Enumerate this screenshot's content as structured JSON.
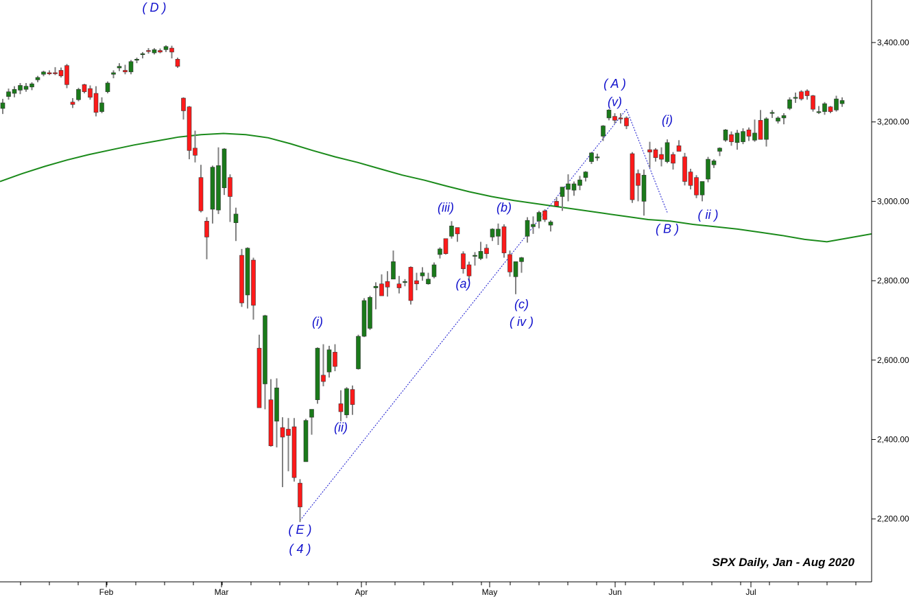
{
  "chart_data": {
    "type": "candlestick",
    "title": "SPX Daily, Jan - Aug 2020",
    "ylim": [
      2080,
      3510
    ],
    "y_ticks": [
      "2,200.00",
      "2,400.00",
      "2,600.00",
      "2,800.00",
      "3,000.00",
      "3,200.00",
      "3,400.00"
    ],
    "x_ticks": [
      "Feb",
      "Mar",
      "Apr",
      "May",
      "Jun",
      "Jul"
    ],
    "grid": false,
    "colors": {
      "up": "#1a7a1a",
      "down": "#ff1a1a",
      "wick": "#808080",
      "moving_average": "#1a8a1a",
      "wave_text": "#1010cc",
      "trendline": "#1010cc"
    },
    "candles": [
      {
        "o": 3234,
        "h": 3258,
        "l": 3220,
        "c": 3248
      },
      {
        "o": 3264,
        "h": 3284,
        "l": 3256,
        "c": 3276
      },
      {
        "o": 3272,
        "h": 3290,
        "l": 3262,
        "c": 3282
      },
      {
        "o": 3280,
        "h": 3298,
        "l": 3270,
        "c": 3292
      },
      {
        "o": 3282,
        "h": 3298,
        "l": 3276,
        "c": 3290
      },
      {
        "o": 3288,
        "h": 3300,
        "l": 3280,
        "c": 3296
      },
      {
        "o": 3306,
        "h": 3316,
        "l": 3300,
        "c": 3312
      },
      {
        "o": 3320,
        "h": 3329,
        "l": 3315,
        "c": 3326
      },
      {
        "o": 3324,
        "h": 3330,
        "l": 3318,
        "c": 3321
      },
      {
        "o": 3324,
        "h": 3338,
        "l": 3318,
        "c": 3322
      },
      {
        "o": 3330,
        "h": 3337,
        "l": 3312,
        "c": 3316
      },
      {
        "o": 3342,
        "h": 3346,
        "l": 3285,
        "c": 3294
      },
      {
        "o": 3250,
        "h": 3260,
        "l": 3235,
        "c": 3244
      },
      {
        "o": 3256,
        "h": 3286,
        "l": 3252,
        "c": 3282
      },
      {
        "o": 3294,
        "h": 3296,
        "l": 3272,
        "c": 3276
      },
      {
        "o": 3284,
        "h": 3292,
        "l": 3256,
        "c": 3262
      },
      {
        "o": 3272,
        "h": 3290,
        "l": 3214,
        "c": 3224
      },
      {
        "o": 3226,
        "h": 3262,
        "l": 3222,
        "c": 3248
      },
      {
        "o": 3276,
        "h": 3302,
        "l": 3272,
        "c": 3298
      },
      {
        "o": 3320,
        "h": 3330,
        "l": 3310,
        "c": 3324
      },
      {
        "o": 3336,
        "h": 3348,
        "l": 3328,
        "c": 3340
      },
      {
        "o": 3330,
        "h": 3344,
        "l": 3320,
        "c": 3326
      },
      {
        "o": 3326,
        "h": 3356,
        "l": 3320,
        "c": 3352
      },
      {
        "o": 3356,
        "h": 3362,
        "l": 3348,
        "c": 3358
      },
      {
        "o": 3370,
        "h": 3376,
        "l": 3360,
        "c": 3372
      },
      {
        "o": 3380,
        "h": 3386,
        "l": 3372,
        "c": 3378
      },
      {
        "o": 3374,
        "h": 3386,
        "l": 3370,
        "c": 3382
      },
      {
        "o": 3380,
        "h": 3385,
        "l": 3373,
        "c": 3376
      },
      {
        "o": 3382,
        "h": 3393,
        "l": 3376,
        "c": 3390
      },
      {
        "o": 3386,
        "h": 3392,
        "l": 3360,
        "c": 3376
      },
      {
        "o": 3358,
        "h": 3362,
        "l": 3336,
        "c": 3340
      },
      {
        "o": 3260,
        "h": 3262,
        "l": 3206,
        "c": 3228
      },
      {
        "o": 3238,
        "h": 3240,
        "l": 3106,
        "c": 3128
      },
      {
        "o": 3134,
        "h": 3178,
        "l": 3098,
        "c": 3116
      },
      {
        "o": 3060,
        "h": 3092,
        "l": 2972,
        "c": 2976
      },
      {
        "o": 2950,
        "h": 2960,
        "l": 2854,
        "c": 2910
      },
      {
        "o": 2980,
        "h": 3090,
        "l": 2944,
        "c": 3086
      },
      {
        "o": 2978,
        "h": 3136,
        "l": 2968,
        "c": 3090
      },
      {
        "o": 3034,
        "h": 3134,
        "l": 3016,
        "c": 3132
      },
      {
        "o": 3060,
        "h": 3068,
        "l": 2948,
        "c": 3012
      },
      {
        "o": 2946,
        "h": 2984,
        "l": 2900,
        "c": 2968
      },
      {
        "o": 2864,
        "h": 2880,
        "l": 2734,
        "c": 2744
      },
      {
        "o": 2764,
        "h": 2884,
        "l": 2730,
        "c": 2882
      },
      {
        "o": 2852,
        "h": 2858,
        "l": 2702,
        "c": 2738
      },
      {
        "o": 2630,
        "h": 2664,
        "l": 2480,
        "c": 2480
      },
      {
        "o": 2540,
        "h": 2714,
        "l": 2476,
        "c": 2712
      },
      {
        "o": 2500,
        "h": 2552,
        "l": 2382,
        "c": 2384
      },
      {
        "o": 2446,
        "h": 2554,
        "l": 2380,
        "c": 2530
      },
      {
        "o": 2430,
        "h": 2456,
        "l": 2280,
        "c": 2406
      },
      {
        "o": 2426,
        "h": 2454,
        "l": 2320,
        "c": 2410
      },
      {
        "o": 2432,
        "h": 2454,
        "l": 2294,
        "c": 2304
      },
      {
        "o": 2290,
        "h": 2300,
        "l": 2192,
        "c": 2230
      },
      {
        "o": 2344,
        "h": 2452,
        "l": 2344,
        "c": 2448
      },
      {
        "o": 2456,
        "h": 2476,
        "l": 2412,
        "c": 2476
      },
      {
        "o": 2500,
        "h": 2632,
        "l": 2490,
        "c": 2630
      },
      {
        "o": 2562,
        "h": 2640,
        "l": 2534,
        "c": 2546
      },
      {
        "o": 2570,
        "h": 2636,
        "l": 2556,
        "c": 2626
      },
      {
        "o": 2620,
        "h": 2640,
        "l": 2572,
        "c": 2584
      },
      {
        "o": 2490,
        "h": 2524,
        "l": 2446,
        "c": 2470
      },
      {
        "o": 2462,
        "h": 2532,
        "l": 2454,
        "c": 2528
      },
      {
        "o": 2526,
        "h": 2536,
        "l": 2462,
        "c": 2488
      },
      {
        "o": 2578,
        "h": 2664,
        "l": 2576,
        "c": 2660
      },
      {
        "o": 2660,
        "h": 2756,
        "l": 2658,
        "c": 2750
      },
      {
        "o": 2680,
        "h": 2762,
        "l": 2676,
        "c": 2758
      },
      {
        "o": 2782,
        "h": 2796,
        "l": 2728,
        "c": 2786
      },
      {
        "o": 2792,
        "h": 2816,
        "l": 2764,
        "c": 2762
      },
      {
        "o": 2798,
        "h": 2824,
        "l": 2760,
        "c": 2784
      },
      {
        "o": 2804,
        "h": 2876,
        "l": 2806,
        "c": 2848
      },
      {
        "o": 2792,
        "h": 2812,
        "l": 2768,
        "c": 2782
      },
      {
        "o": 2796,
        "h": 2804,
        "l": 2786,
        "c": 2798
      },
      {
        "o": 2834,
        "h": 2836,
        "l": 2740,
        "c": 2750
      },
      {
        "o": 2800,
        "h": 2820,
        "l": 2776,
        "c": 2792
      },
      {
        "o": 2812,
        "h": 2834,
        "l": 2800,
        "c": 2820
      },
      {
        "o": 2792,
        "h": 2820,
        "l": 2790,
        "c": 2804
      },
      {
        "o": 2810,
        "h": 2846,
        "l": 2806,
        "c": 2840
      },
      {
        "o": 2866,
        "h": 2884,
        "l": 2856,
        "c": 2880
      },
      {
        "o": 2906,
        "h": 2904,
        "l": 2866,
        "c": 2868
      },
      {
        "o": 2912,
        "h": 2950,
        "l": 2906,
        "c": 2938
      },
      {
        "o": 2934,
        "h": 2930,
        "l": 2898,
        "c": 2918
      },
      {
        "o": 2868,
        "h": 2874,
        "l": 2818,
        "c": 2830
      },
      {
        "o": 2840,
        "h": 2848,
        "l": 2798,
        "c": 2812
      },
      {
        "o": 2862,
        "h": 2872,
        "l": 2838,
        "c": 2864
      },
      {
        "o": 2856,
        "h": 2898,
        "l": 2852,
        "c": 2874
      },
      {
        "o": 2882,
        "h": 2892,
        "l": 2856,
        "c": 2868
      },
      {
        "o": 2910,
        "h": 2932,
        "l": 2900,
        "c": 2930
      },
      {
        "o": 2912,
        "h": 2944,
        "l": 2890,
        "c": 2930
      },
      {
        "o": 2936,
        "h": 2942,
        "l": 2858,
        "c": 2870
      },
      {
        "o": 2866,
        "h": 2876,
        "l": 2810,
        "c": 2822
      },
      {
        "o": 2810,
        "h": 2848,
        "l": 2766,
        "c": 2848
      },
      {
        "o": 2848,
        "h": 2860,
        "l": 2820,
        "c": 2858
      },
      {
        "o": 2912,
        "h": 2960,
        "l": 2896,
        "c": 2952
      },
      {
        "o": 2936,
        "h": 2962,
        "l": 2918,
        "c": 2942
      },
      {
        "o": 2950,
        "h": 2976,
        "l": 2932,
        "c": 2972
      },
      {
        "o": 2976,
        "h": 2980,
        "l": 2948,
        "c": 2954
      },
      {
        "o": 2940,
        "h": 2952,
        "l": 2924,
        "c": 2948
      },
      {
        "o": 3000,
        "h": 3010,
        "l": 2990,
        "c": 2988
      },
      {
        "o": 3012,
        "h": 3024,
        "l": 2976,
        "c": 3036
      },
      {
        "o": 3030,
        "h": 3068,
        "l": 3000,
        "c": 3044
      },
      {
        "o": 3028,
        "h": 3050,
        "l": 3014,
        "c": 3044
      },
      {
        "o": 3040,
        "h": 3064,
        "l": 3028,
        "c": 3054
      },
      {
        "o": 3060,
        "h": 3076,
        "l": 3050,
        "c": 3074
      },
      {
        "o": 3100,
        "h": 3124,
        "l": 3094,
        "c": 3122
      },
      {
        "o": 3110,
        "h": 3120,
        "l": 3102,
        "c": 3112
      },
      {
        "o": 3164,
        "h": 3192,
        "l": 3152,
        "c": 3190
      },
      {
        "o": 3210,
        "h": 3232,
        "l": 3204,
        "c": 3230
      },
      {
        "o": 3214,
        "h": 3222,
        "l": 3196,
        "c": 3204
      },
      {
        "o": 3210,
        "h": 3222,
        "l": 3196,
        "c": 3208
      },
      {
        "o": 3210,
        "h": 3214,
        "l": 3182,
        "c": 3190
      },
      {
        "o": 3120,
        "h": 3124,
        "l": 2996,
        "c": 3004
      },
      {
        "o": 3070,
        "h": 3080,
        "l": 3000,
        "c": 3040
      },
      {
        "o": 3000,
        "h": 3080,
        "l": 2964,
        "c": 3066
      },
      {
        "o": 3130,
        "h": 3150,
        "l": 3084,
        "c": 3124
      },
      {
        "o": 3130,
        "h": 3134,
        "l": 3100,
        "c": 3110
      },
      {
        "o": 3118,
        "h": 3136,
        "l": 3088,
        "c": 3106
      },
      {
        "o": 3100,
        "h": 3156,
        "l": 3096,
        "c": 3148
      },
      {
        "o": 3118,
        "h": 3124,
        "l": 3080,
        "c": 3096
      },
      {
        "o": 3140,
        "h": 3154,
        "l": 3130,
        "c": 3126
      },
      {
        "o": 3112,
        "h": 3122,
        "l": 3040,
        "c": 3050
      },
      {
        "o": 3074,
        "h": 3082,
        "l": 3030,
        "c": 3040
      },
      {
        "o": 3060,
        "h": 3066,
        "l": 3008,
        "c": 3016
      },
      {
        "o": 3016,
        "h": 3044,
        "l": 3000,
        "c": 3050
      },
      {
        "o": 3056,
        "h": 3112,
        "l": 3048,
        "c": 3106
      },
      {
        "o": 3092,
        "h": 3106,
        "l": 3084,
        "c": 3102
      },
      {
        "o": 3126,
        "h": 3136,
        "l": 3114,
        "c": 3134
      },
      {
        "o": 3154,
        "h": 3182,
        "l": 3150,
        "c": 3180
      },
      {
        "o": 3168,
        "h": 3176,
        "l": 3140,
        "c": 3150
      },
      {
        "o": 3148,
        "h": 3180,
        "l": 3130,
        "c": 3172
      },
      {
        "o": 3150,
        "h": 3184,
        "l": 3144,
        "c": 3176
      },
      {
        "o": 3180,
        "h": 3186,
        "l": 3152,
        "c": 3164
      },
      {
        "o": 3154,
        "h": 3206,
        "l": 3150,
        "c": 3172
      },
      {
        "o": 3204,
        "h": 3230,
        "l": 3156,
        "c": 3156
      },
      {
        "o": 3156,
        "h": 3212,
        "l": 3138,
        "c": 3208
      },
      {
        "o": 3222,
        "h": 3230,
        "l": 3210,
        "c": 3224
      },
      {
        "o": 3202,
        "h": 3214,
        "l": 3196,
        "c": 3210
      },
      {
        "o": 3210,
        "h": 3222,
        "l": 3194,
        "c": 3216
      },
      {
        "o": 3234,
        "h": 3262,
        "l": 3230,
        "c": 3256
      },
      {
        "o": 3262,
        "h": 3274,
        "l": 3248,
        "c": 3262
      },
      {
        "o": 3276,
        "h": 3280,
        "l": 3254,
        "c": 3258
      },
      {
        "o": 3278,
        "h": 3282,
        "l": 3256,
        "c": 3266
      },
      {
        "o": 3266,
        "h": 3268,
        "l": 3226,
        "c": 3232
      },
      {
        "o": 3226,
        "h": 3240,
        "l": 3220,
        "c": 3226
      },
      {
        "o": 3226,
        "h": 3250,
        "l": 3218,
        "c": 3246
      },
      {
        "o": 3238,
        "h": 3240,
        "l": 3222,
        "c": 3226
      },
      {
        "o": 3230,
        "h": 3266,
        "l": 3226,
        "c": 3258
      },
      {
        "o": 3246,
        "h": 3262,
        "l": 3238,
        "c": 3254
      }
    ],
    "moving_average": [
      3050,
      3070,
      3088,
      3104,
      3118,
      3130,
      3142,
      3152,
      3162,
      3168,
      3171,
      3168,
      3160,
      3145,
      3128,
      3112,
      3098,
      3082,
      3066,
      3053,
      3038,
      3024,
      3012,
      3002,
      2994,
      2986,
      2978,
      2970,
      2962,
      2954,
      2950,
      2942,
      2936,
      2930,
      2922,
      2914,
      2904,
      2898,
      2908,
      2918
    ],
    "trendlines": [
      {
        "from": [
          51,
          2196
        ],
        "to": [
          107,
          3232
        ]
      },
      {
        "from": [
          107,
          3232
        ],
        "to": [
          114,
          2972
        ]
      }
    ],
    "annotations": [
      {
        "text": "( D )",
        "idx": 26,
        "price": 3478
      },
      {
        "text": "( E )",
        "idx": 51,
        "price": 2162
      },
      {
        "text": "( 4 )",
        "idx": 51,
        "price": 2114
      },
      {
        "text": "(i)",
        "idx": 54,
        "price": 2686
      },
      {
        "text": "(ii)",
        "idx": 58,
        "price": 2420
      },
      {
        "text": "(iii)",
        "idx": 76,
        "price": 2974
      },
      {
        "text": "(a)",
        "idx": 79,
        "price": 2782
      },
      {
        "text": "(b)",
        "idx": 86,
        "price": 2974
      },
      {
        "text": "(c)",
        "idx": 89,
        "price": 2730
      },
      {
        "text": "( iv )",
        "idx": 89,
        "price": 2686
      },
      {
        "text": "( A )",
        "idx": 105,
        "price": 3286
      },
      {
        "text": "(v)",
        "idx": 105,
        "price": 3240
      },
      {
        "text": "(i)",
        "idx": 114,
        "price": 3194
      },
      {
        "text": "( B )",
        "idx": 114,
        "price": 2920
      },
      {
        "text": "( ii )",
        "idx": 121,
        "price": 2956
      }
    ]
  }
}
